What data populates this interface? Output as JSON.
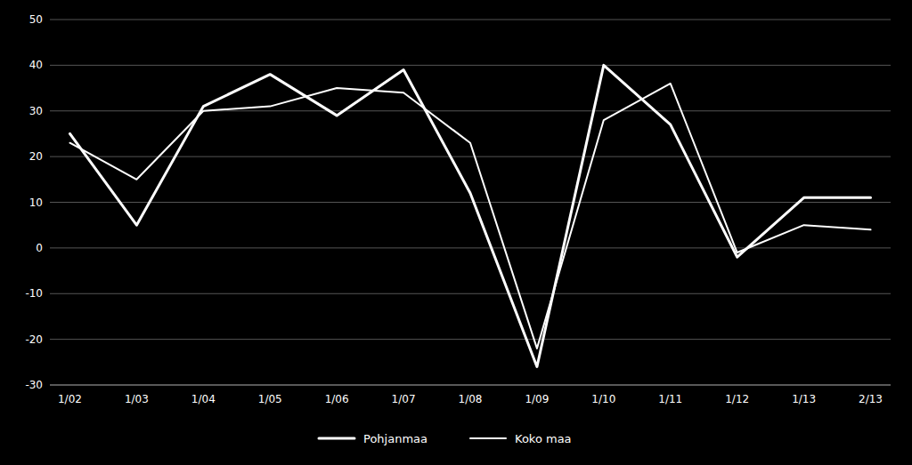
{
  "chart_data": {
    "type": "line",
    "categories": [
      "1/02",
      "1/03",
      "1/04",
      "1/05",
      "1/06",
      "1/07",
      "1/08",
      "1/09",
      "1/10",
      "1/11",
      "1/12",
      "1/13",
      "2/13"
    ],
    "series": [
      {
        "name": "Pohjanmaa",
        "color": "#ffffff",
        "values": [
          25,
          5,
          31,
          38,
          29,
          39,
          12,
          -26,
          40,
          27,
          -2,
          11,
          11
        ]
      },
      {
        "name": "Koko maa",
        "color": "#ffffff",
        "values": [
          23,
          15,
          30,
          31,
          35,
          34,
          23,
          -22,
          28,
          36,
          -1,
          5,
          4
        ]
      }
    ],
    "ylim": [
      -30,
      50
    ],
    "yticks": [
      -30,
      -20,
      -10,
      0,
      10,
      20,
      30,
      40,
      50
    ],
    "grid": true,
    "legend": "bottom"
  }
}
